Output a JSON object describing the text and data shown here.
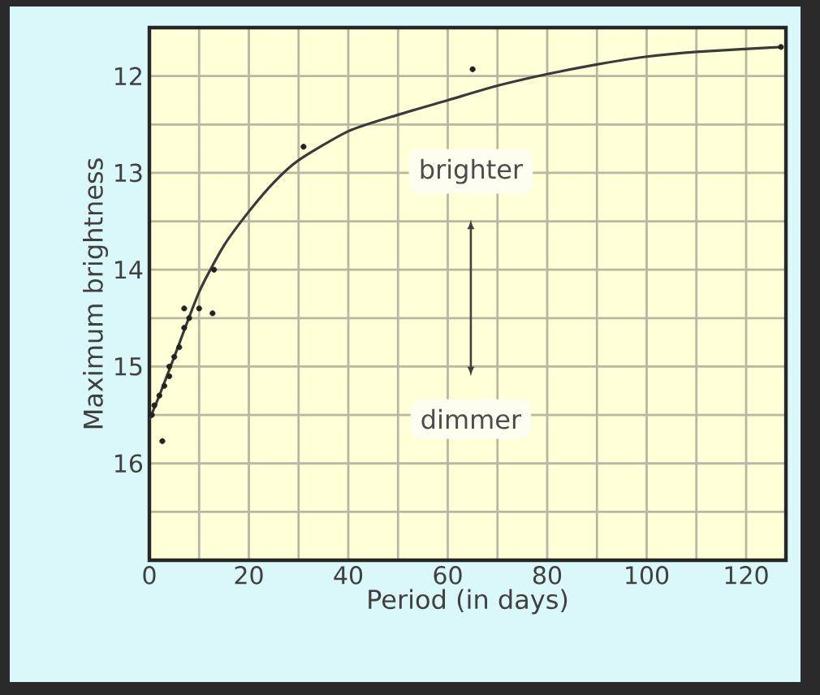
{
  "chart_data": {
    "type": "scatter",
    "xlabel": "Period (in days)",
    "ylabel": "Maximum brightness",
    "xlim": [
      0,
      128
    ],
    "ylim": [
      17,
      11.5
    ],
    "xticks": [
      0,
      20,
      40,
      60,
      80,
      100,
      120
    ],
    "yticks": [
      12,
      13,
      14,
      15,
      16
    ],
    "grid": true,
    "annotations": [
      "brighter",
      "dimmer"
    ],
    "series": [
      {
        "color": "#222222",
        "marker": "circle",
        "x": [
          0.5,
          1,
          2,
          2.6,
          3,
          4,
          4,
          5,
          6,
          7,
          7,
          8,
          10,
          12.7,
          13,
          31,
          65,
          127
        ],
        "values": [
          15.5,
          15.4,
          15.3,
          15.77,
          15.2,
          15.1,
          15.0,
          14.9,
          14.8,
          14.6,
          14.4,
          14.5,
          14.4,
          14.45,
          14.0,
          12.73,
          11.93,
          11.7
        ]
      },
      {
        "type": "line",
        "color": "#3a3a3a",
        "marker": "none",
        "x": [
          0,
          2,
          5,
          10,
          15,
          20,
          25,
          30,
          40,
          50,
          60,
          70,
          80,
          90,
          100,
          110,
          127
        ],
        "values": [
          15.55,
          15.3,
          14.9,
          14.23,
          13.75,
          13.4,
          13.1,
          12.87,
          12.57,
          12.4,
          12.25,
          12.1,
          11.98,
          11.88,
          11.8,
          11.75,
          11.7
        ]
      }
    ]
  }
}
